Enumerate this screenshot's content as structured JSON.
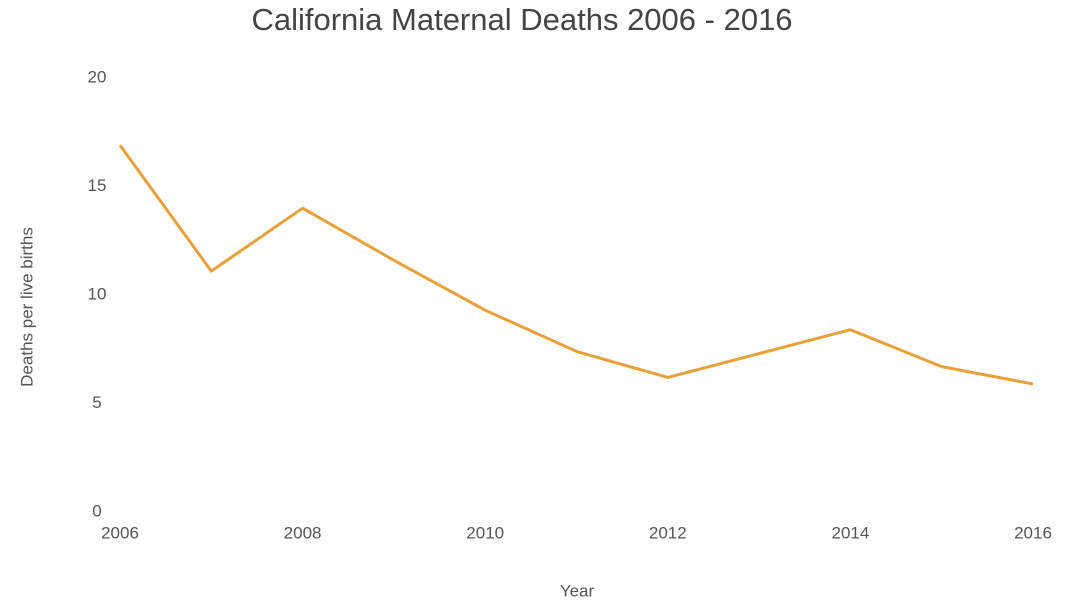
{
  "chart_data": {
    "type": "line",
    "title": "California Maternal Deaths 2006 - 2016",
    "x_label": "Year",
    "y_label": "Deaths per live births",
    "x": [
      2006,
      2007,
      2008,
      2009,
      2010,
      2011,
      2012,
      2013,
      2014,
      2015,
      2016
    ],
    "series": [
      {
        "name": "Deaths per live births",
        "color": "#e8a03a",
        "values": [
          16.9,
          11.1,
          14.0,
          11.6,
          9.3,
          7.4,
          6.2,
          7.3,
          8.4,
          6.7,
          5.9
        ]
      }
    ],
    "xlim": [
      2006,
      2016
    ],
    "xticks": [
      2006,
      2008,
      2010,
      2012,
      2014,
      2016
    ],
    "ylim": [
      0,
      20
    ],
    "yticks": [
      0,
      5,
      10,
      15,
      20
    ],
    "grid": false
  }
}
